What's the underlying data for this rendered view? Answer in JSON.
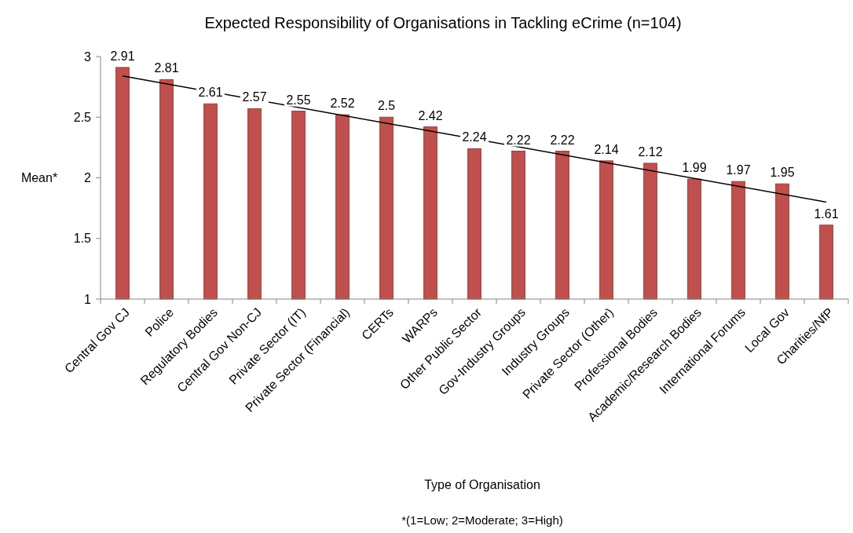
{
  "chart_data": {
    "type": "bar",
    "title": "Expected Responsibility of Organisations in Tackling eCrime (n=104)",
    "xlabel": "Type of Organisation",
    "ylabel": "Mean*",
    "categories": [
      "Central Gov CJ",
      "Police",
      "Regulatory Bodies",
      "Central Gov Non-CJ",
      "Private Sector (IT)",
      "Private Sector (Financial)",
      "CERTs",
      "WARPs",
      "Other Public Sector",
      "Gov-Industry Groups",
      "Industry Groups",
      "Private Sector (Other)",
      "Professional Bodies",
      "Academic/Research Bodies",
      "International Forums",
      "Local Gov",
      "Charities/NfP"
    ],
    "series": [
      {
        "color": "#c0504d",
        "values": [
          2.91,
          2.81,
          2.61,
          2.57,
          2.55,
          2.52,
          2.5,
          2.42,
          2.24,
          2.22,
          2.22,
          2.14,
          2.12,
          1.99,
          1.97,
          1.95,
          1.61
        ],
        "value_labels": [
          "2.91",
          "2.81",
          "2.61",
          "2.57",
          "2.55",
          "2.52",
          "2.5",
          "2.42",
          "2.24",
          "2.22",
          "2.22",
          "2.14",
          "2.12",
          "1.99",
          "1.97",
          "1.95",
          "1.61"
        ]
      },
      {
        "type": "line",
        "color": "#000000",
        "x": [
          "Central Gov CJ",
          "Charities/NfP"
        ],
        "values": [
          2.84,
          1.8
        ]
      }
    ],
    "ylim": [
      1,
      3
    ],
    "yticks": [
      1,
      1.5,
      2,
      2.5,
      3
    ],
    "grid": false,
    "annotations": [
      "*(1=Low; 2=Moderate; 3=High)"
    ]
  }
}
